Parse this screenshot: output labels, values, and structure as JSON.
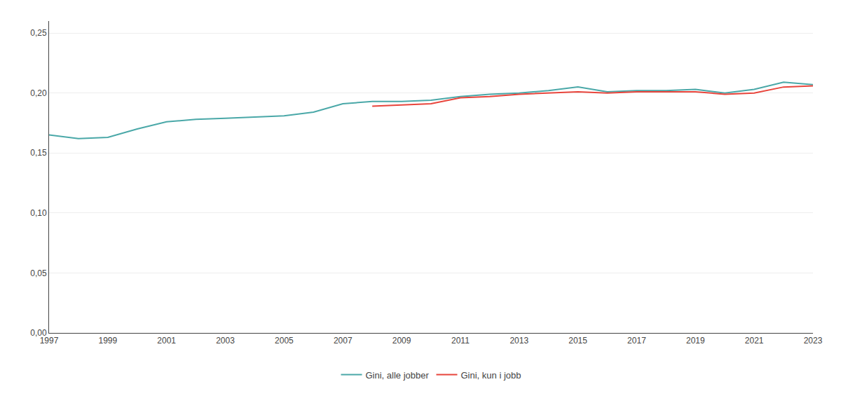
{
  "chart_data": {
    "type": "line",
    "series": [
      {
        "name": "Gini, alle jobber",
        "color": "#4aa8a8",
        "x": [
          1997,
          1998,
          1999,
          2000,
          2001,
          2002,
          2003,
          2004,
          2005,
          2006,
          2007,
          2008,
          2009,
          2010,
          2011,
          2012,
          2013,
          2014,
          2015,
          2016,
          2017,
          2018,
          2019,
          2020,
          2021,
          2022,
          2023
        ],
        "values": [
          0.165,
          0.162,
          0.163,
          0.17,
          0.176,
          0.178,
          0.179,
          0.18,
          0.181,
          0.184,
          0.191,
          0.193,
          0.193,
          0.194,
          0.197,
          0.199,
          0.2,
          0.202,
          0.205,
          0.201,
          0.202,
          0.202,
          0.203,
          0.2,
          0.203,
          0.209,
          0.207
        ]
      },
      {
        "name": "Gini, kun i jobb",
        "color": "#e8453c",
        "x": [
          2008,
          2009,
          2010,
          2011,
          2012,
          2013,
          2014,
          2015,
          2016,
          2017,
          2018,
          2019,
          2020,
          2021,
          2022,
          2023
        ],
        "values": [
          0.189,
          0.19,
          0.191,
          0.196,
          0.197,
          0.199,
          0.2,
          0.201,
          0.2,
          0.201,
          0.201,
          0.201,
          0.199,
          0.2,
          0.205,
          0.206
        ]
      }
    ],
    "xlim": [
      1997,
      2023
    ],
    "xticks": [
      1997,
      1999,
      2001,
      2003,
      2005,
      2007,
      2009,
      2011,
      2013,
      2015,
      2017,
      2019,
      2021,
      2023
    ],
    "ylim": [
      0.0,
      0.26
    ],
    "yticks": [
      {
        "value": 0.0,
        "label": "0,00"
      },
      {
        "value": 0.05,
        "label": "0,05"
      },
      {
        "value": 0.1,
        "label": "0,10"
      },
      {
        "value": 0.15,
        "label": "0,15"
      },
      {
        "value": 0.2,
        "label": "0,20"
      },
      {
        "value": 0.25,
        "label": "0,25"
      }
    ],
    "grid": true,
    "legend": "bottom"
  }
}
